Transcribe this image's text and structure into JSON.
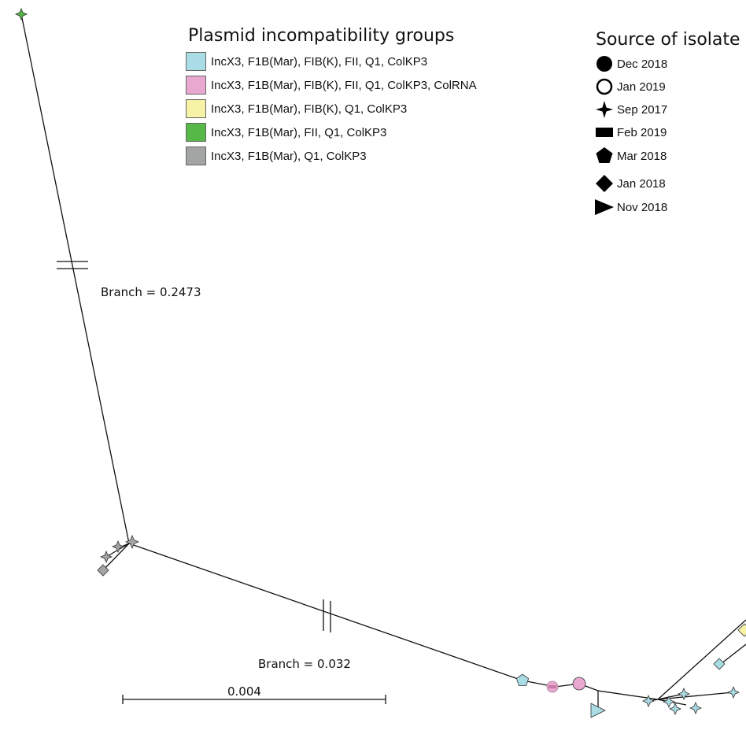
{
  "plasmid_legend": {
    "title": "Plasmid incompatibility groups",
    "items": [
      {
        "label": "IncX3, F1B(Mar), FIB(K), FII, Q1, ColKP3",
        "color": "#aadce6"
      },
      {
        "label": "IncX3, F1B(Mar), FIB(K), FII, Q1, ColKP3, ColRNA",
        "color": "#e9a8d0"
      },
      {
        "label": "IncX3, F1B(Mar), FIB(K), Q1, ColKP3",
        "color": "#f6f2a6"
      },
      {
        "label": "IncX3, F1B(Mar), FII, Q1, ColKP3",
        "color": "#55b847"
      },
      {
        "label": "IncX3, F1B(Mar), Q1, ColKP3",
        "color": "#a2a5a4"
      }
    ]
  },
  "source_legend": {
    "title": "Source of isolate",
    "items": [
      {
        "label": "Dec 2018",
        "shape": "filled-circle-icon"
      },
      {
        "label": "Jan 2019",
        "shape": "open-circle-icon"
      },
      {
        "label": "Sep 2017",
        "shape": "four-point-star-icon"
      },
      {
        "label": "Feb 2019",
        "shape": "rectangle-icon"
      },
      {
        "label": "Mar 2018",
        "shape": "pentagon-icon"
      },
      {
        "label": "Jan 2018",
        "shape": "diamond-icon"
      },
      {
        "label": "Nov 2018",
        "shape": "triangle-right-icon"
      }
    ]
  },
  "annotations": {
    "branch_long": "Branch = 0.2473",
    "branch_short": "Branch = 0.032",
    "scale": "0.004"
  },
  "tree": {
    "nodes": [
      {
        "group": 3,
        "shape": "star"
      },
      {
        "group": 4,
        "shape": "star"
      },
      {
        "group": 4,
        "shape": "star"
      },
      {
        "group": 4,
        "shape": "star"
      },
      {
        "group": 4,
        "shape": "diamond"
      },
      {
        "group": 0,
        "shape": "pentagon"
      },
      {
        "group": 1,
        "shape": "rect"
      },
      {
        "group": 1,
        "shape": "circle"
      },
      {
        "group": 0,
        "shape": "triangle"
      },
      {
        "group": 0,
        "shape": "star"
      },
      {
        "group": 0,
        "shape": "star"
      },
      {
        "group": 0,
        "shape": "star"
      },
      {
        "group": 0,
        "shape": "star"
      },
      {
        "group": 0,
        "shape": "star"
      },
      {
        "group": 0,
        "shape": "star"
      },
      {
        "group": 0,
        "shape": "diamond"
      },
      {
        "group": 2,
        "shape": "diamond"
      }
    ]
  }
}
